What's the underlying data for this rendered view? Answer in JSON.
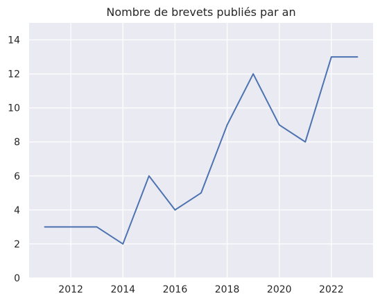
{
  "chart_data": {
    "type": "line",
    "title": "Nombre de brevets publiés par an",
    "xlabel": "",
    "ylabel": "",
    "x": [
      2011,
      2012,
      2013,
      2014,
      2015,
      2016,
      2017,
      2018,
      2019,
      2020,
      2021,
      2022,
      2023
    ],
    "series": [
      {
        "values": [
          3,
          3,
          3,
          2,
          6,
          4,
          5,
          9,
          12,
          9,
          8,
          13,
          13
        ],
        "color": "#4c72b0"
      }
    ],
    "xlim": [
      2010.4,
      2023.6
    ],
    "ylim": [
      0,
      15
    ],
    "xticks": [
      2012,
      2014,
      2016,
      2018,
      2020,
      2022
    ],
    "yticks": [
      0,
      2,
      4,
      6,
      8,
      10,
      12,
      14
    ],
    "grid": true,
    "background": "#eaeaf2",
    "legend": "none"
  }
}
